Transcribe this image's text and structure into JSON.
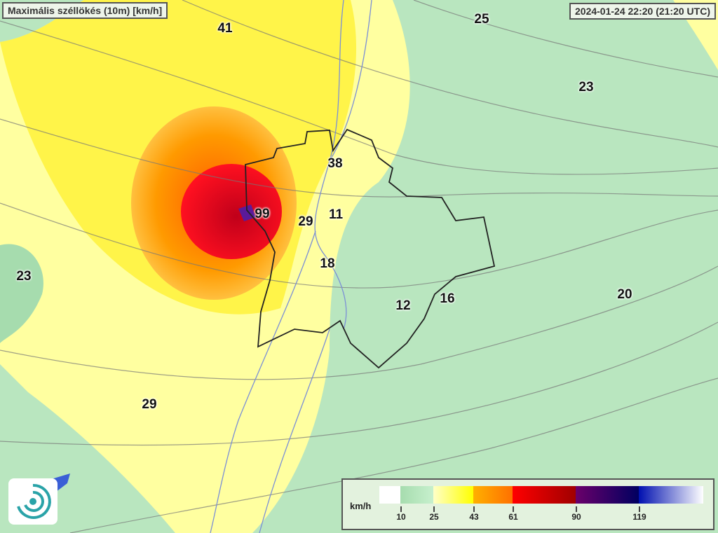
{
  "header": {
    "title": "Maximális széllökés (10m) [km/h]",
    "timestamp": "2024-01-24 22:20 (21:20 UTC)"
  },
  "map": {
    "parameter": "wind gust",
    "colors": {
      "background": "#b9e6bf",
      "low": "#ffff80",
      "mid": "#ff9a00",
      "high": "#e0001a",
      "border": "#222222",
      "river": "#7b8fd6"
    },
    "values": [
      "41",
      "25",
      "23",
      "38",
      "99",
      "29",
      "11",
      "18",
      "23",
      "12",
      "16",
      "20",
      "29"
    ]
  },
  "legend": {
    "unit": "km/h",
    "ticks": [
      "10",
      "25",
      "43",
      "61",
      "90",
      "119"
    ],
    "colors": [
      "#ffffff",
      "#a6dcae",
      "#ffff00",
      "#ff8000",
      "#ff0000",
      "#6a006a",
      "#000060",
      "#0010b0"
    ]
  },
  "logo": {
    "icon": "swirl-logo-icon"
  }
}
